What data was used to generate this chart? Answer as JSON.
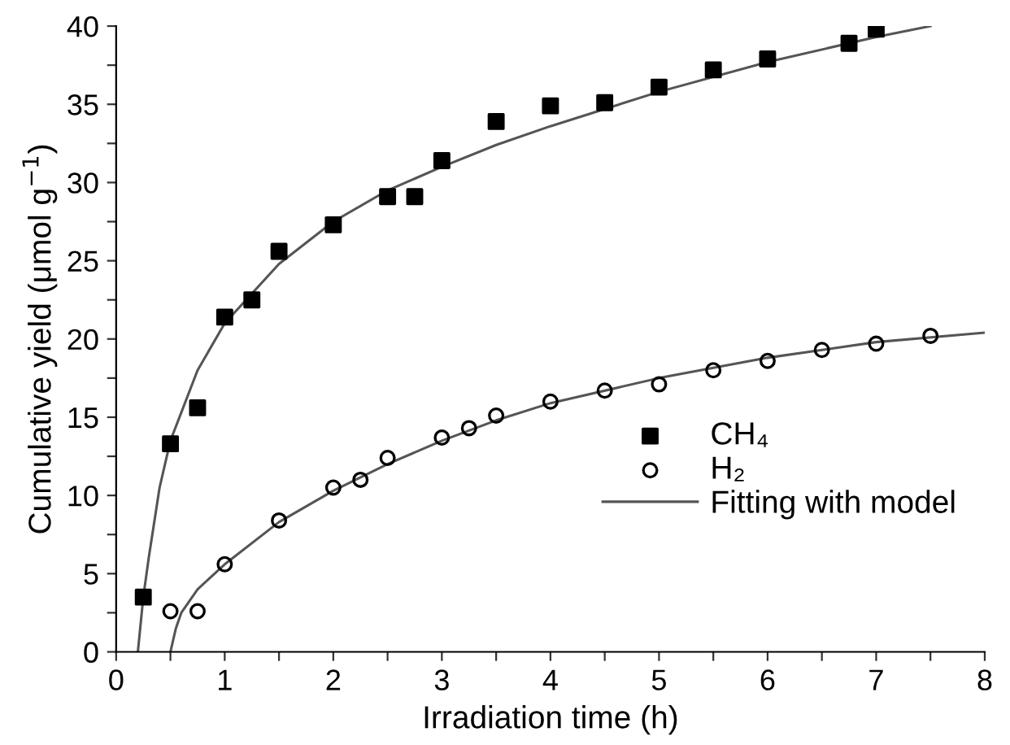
{
  "chart_data": {
    "type": "scatter",
    "xlabel": "Irradiation time (h)",
    "ylabel": "Cumulative yield (μmol g$^{−1}$)",
    "xlim": [
      0,
      8
    ],
    "ylim": [
      0,
      40
    ],
    "xticks": [
      0,
      {
        "value": 0.5,
        "label": null
      },
      1,
      {
        "value": 1.5,
        "label": null
      },
      2,
      {
        "value": 2.5,
        "label": null
      },
      3,
      {
        "value": 3.5,
        "label": null
      },
      4,
      {
        "value": 4.5,
        "label": null
      },
      5,
      {
        "value": 5.5,
        "label": null
      },
      6,
      {
        "value": 6.5,
        "label": null
      },
      7,
      {
        "value": 7.5,
        "label": null
      },
      8
    ],
    "yticks": [
      0,
      {
        "value": 2.5,
        "label": null
      },
      5,
      {
        "value": 7.5,
        "label": null
      },
      10,
      {
        "value": 12.5,
        "label": null
      },
      15,
      {
        "value": 17.5,
        "label": null
      },
      20,
      {
        "value": 22.5,
        "label": null
      },
      25,
      {
        "value": 27.5,
        "label": null
      },
      30,
      {
        "value": 32.5,
        "label": null
      },
      35,
      {
        "value": 37.5,
        "label": null
      },
      40
    ],
    "grid": false,
    "legend": "right",
    "series": [
      {
        "name": "CH₄",
        "marker": "square",
        "color": "#000000",
        "x": [
          0.25,
          0.5,
          0.75,
          1,
          1.25,
          1.5,
          2,
          2.5,
          2.75,
          3,
          3.5,
          4,
          4.5,
          5,
          5.5,
          6,
          6.75,
          7
        ],
        "values": [
          3.5,
          13.3,
          15.6,
          21.4,
          22.5,
          25.6,
          27.3,
          29.1,
          29.1,
          31.4,
          33.9,
          34.9,
          35.1,
          36.1,
          37.2,
          37.9,
          38.9,
          39.8
        ]
      },
      {
        "name": "H₂",
        "marker": "circle",
        "color": "#000000",
        "x": [
          0.5,
          0.75,
          1,
          1.5,
          2,
          2.25,
          2.5,
          3,
          3.25,
          3.5,
          4,
          4.5,
          5,
          5.5,
          6,
          6.5,
          7,
          7.5
        ],
        "values": [
          2.6,
          2.6,
          5.6,
          8.4,
          10.5,
          11,
          12.4,
          13.7,
          14.3,
          15.1,
          16,
          16.7,
          17.1,
          18,
          18.6,
          19.3,
          19.7,
          20.2
        ]
      },
      {
        "name": "Fitting with model",
        "type": "line",
        "marker": "none",
        "line_style": "solid",
        "color": "#555555",
        "x": [
          0.2,
          0.25,
          0.3,
          0.4,
          0.5,
          0.75,
          1,
          1.5,
          2,
          2.5,
          3,
          3.5,
          4,
          5,
          6,
          7,
          7.5
        ],
        "values": [
          0,
          3.5,
          6,
          10.5,
          13.5,
          18,
          21,
          24.8,
          27.5,
          29.5,
          31,
          32.4,
          33.6,
          35.8,
          37.7,
          39.3,
          40
        ]
      },
      {
        "type": "line",
        "marker": "none",
        "line_style": "solid",
        "color": "#555555",
        "x": [
          0.5,
          0.55,
          0.6,
          0.75,
          1,
          1.5,
          2,
          2.5,
          3,
          3.5,
          4,
          5,
          6,
          7,
          8
        ],
        "values": [
          0,
          1.5,
          2.5,
          4,
          5.6,
          8.3,
          10.3,
          12,
          13.5,
          14.8,
          15.9,
          17.5,
          18.8,
          19.8,
          20.4
        ]
      }
    ]
  }
}
